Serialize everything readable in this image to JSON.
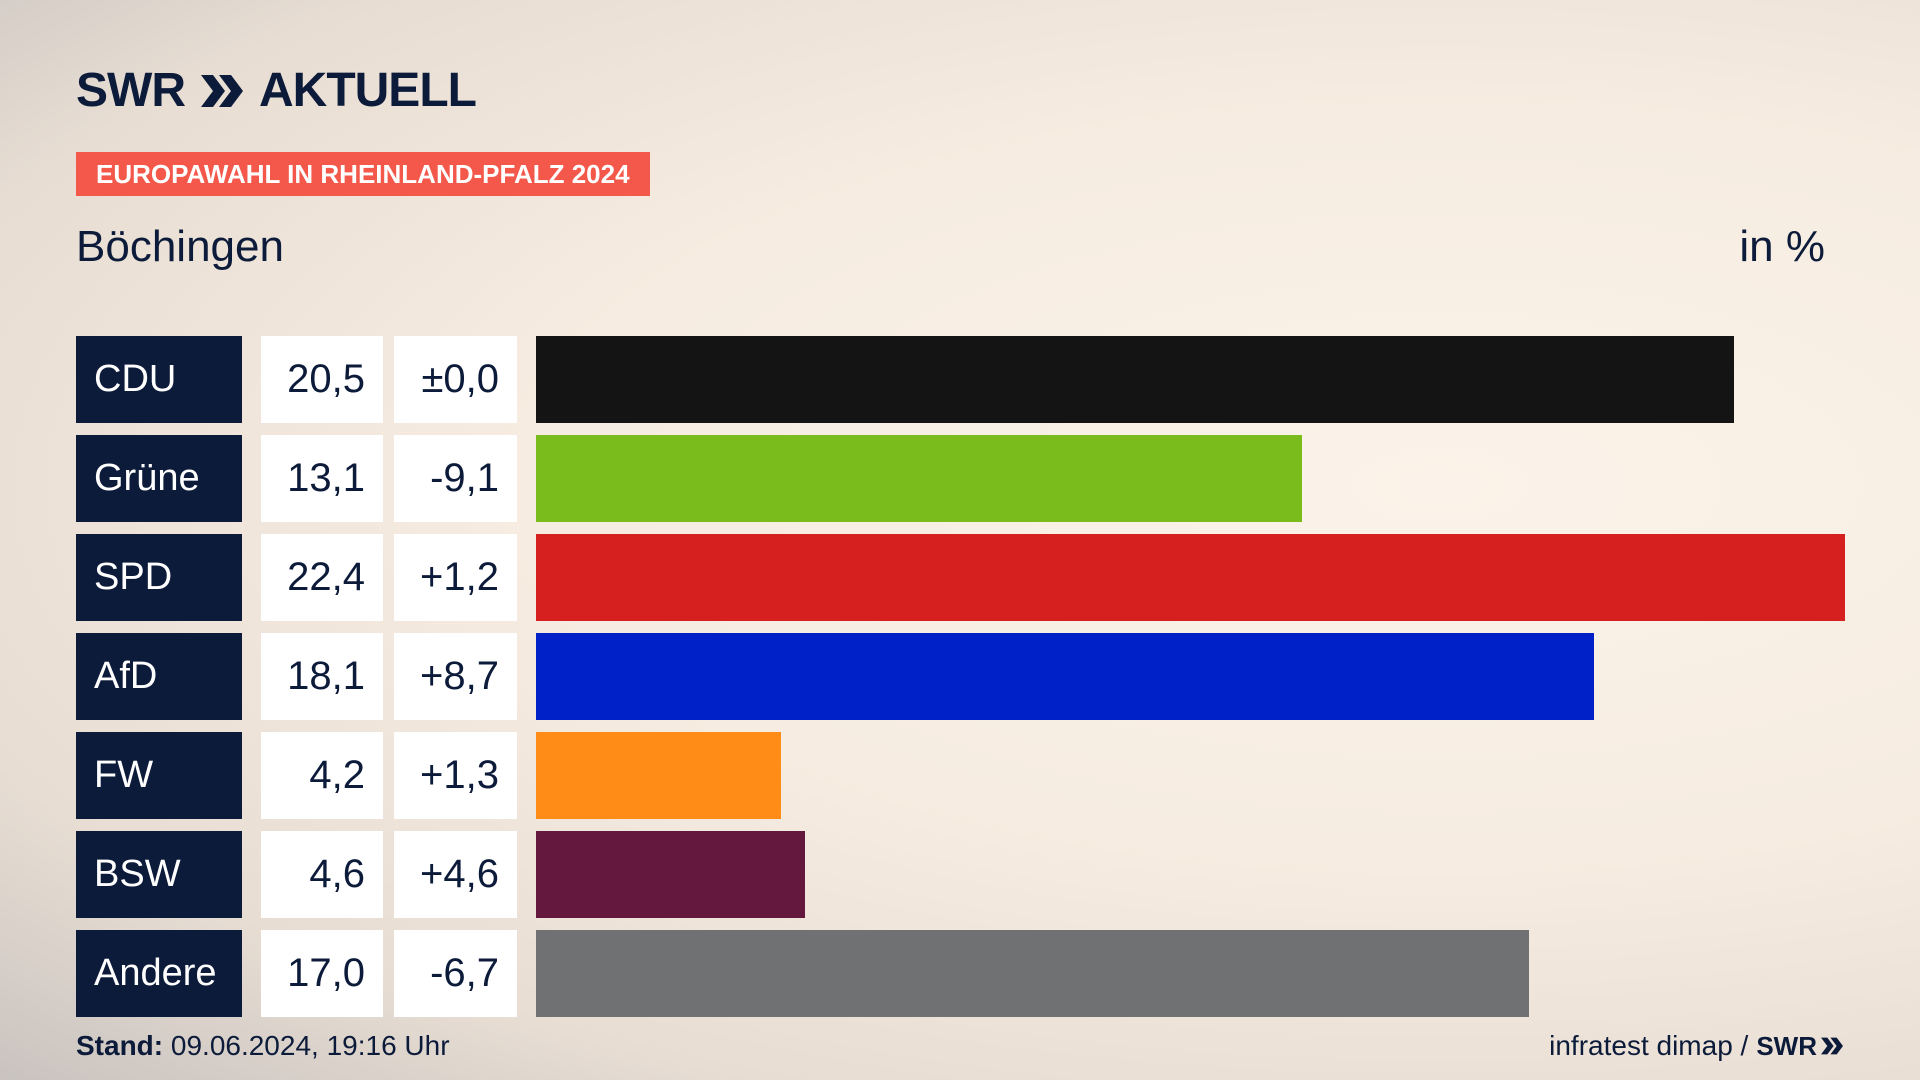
{
  "header": {
    "logo_brand": "SWR",
    "logo_product": "AKTUELL",
    "banner": "EUROPAWAHL IN RHEINLAND-PFALZ 2024",
    "place": "Böchingen",
    "unit": "in %"
  },
  "footer": {
    "stand_label": "Stand:",
    "stand_value": "09.06.2024, 19:16 Uhr",
    "source": "infratest dimap /",
    "source_logo": "SWR"
  },
  "colors": {
    "navy": "#0d1b3a",
    "banner": "#f4584a"
  },
  "chart_data": {
    "type": "bar",
    "orientation": "horizontal",
    "categories": [
      "CDU",
      "Grüne",
      "SPD",
      "AfD",
      "FW",
      "BSW",
      "Andere"
    ],
    "values": [
      20.5,
      13.1,
      22.4,
      18.1,
      4.2,
      4.6,
      17.0
    ],
    "value_labels": [
      "20,5",
      "13,1",
      "22,4",
      "18,1",
      "4,2",
      "4,6",
      "17,0"
    ],
    "diff_labels": [
      "±0,0",
      "-9,1",
      "+1,2",
      "+8,7",
      "+1,3",
      "+4,6",
      "-6,7"
    ],
    "colors": [
      "#141414",
      "#79bc1c",
      "#d61f1f",
      "#0021c7",
      "#ff8c17",
      "#65183d",
      "#707173"
    ],
    "xlim": [
      0,
      22.4
    ]
  }
}
